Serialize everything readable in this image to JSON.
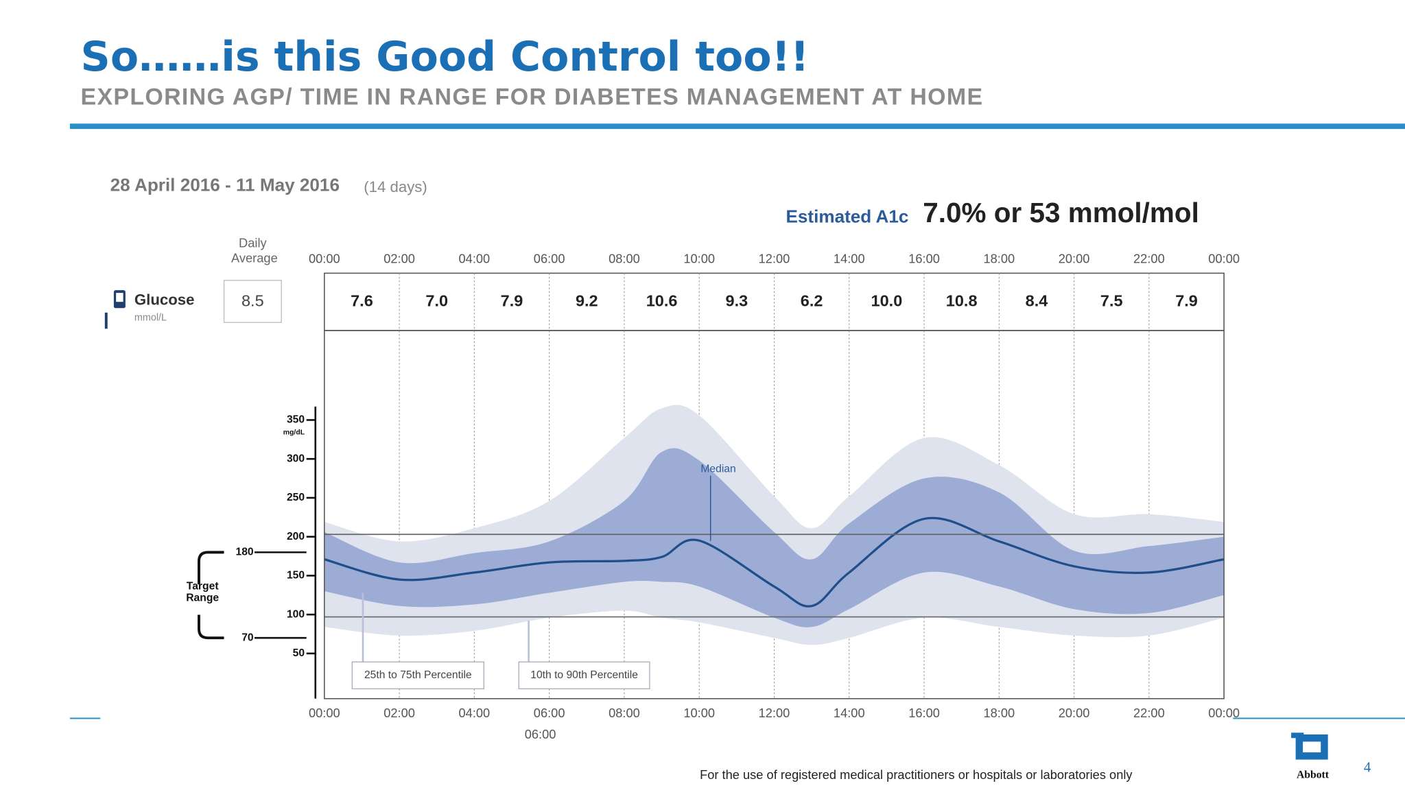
{
  "header": {
    "title": "So……is this Good Control too!!",
    "subtitle": "EXPLORING AGP/ TIME IN RANGE FOR DIABETES MANAGEMENT AT HOME"
  },
  "report": {
    "date_range": "28 April 2016 - 11 May 2016",
    "days": "(14 days)",
    "a1c_label": "Estimated A1c",
    "a1c_value": "7.0% or 53 mmol/mol"
  },
  "glucose": {
    "label": "Glucose",
    "unit": "mmol/L",
    "daily_average_label": "Daily Average",
    "daily_average": "8.5",
    "values": [
      "7.6",
      "7.0",
      "7.9",
      "9.2",
      "10.6",
      "9.3",
      "6.2",
      "10.0",
      "10.8",
      "8.4",
      "7.5",
      "7.9"
    ]
  },
  "chart_data": {
    "type": "band",
    "y_label": "mg/dL",
    "x": [
      0,
      2,
      4,
      6,
      8,
      9,
      10,
      12,
      13,
      14,
      16,
      18,
      20,
      22,
      24
    ],
    "xlim": [
      0,
      24
    ],
    "xticks": [
      {
        "value": 0,
        "label": "00:00"
      },
      {
        "value": 2,
        "label": "02:00"
      },
      {
        "value": 4,
        "label": "04:00"
      },
      {
        "value": 6,
        "label": "06:00"
      },
      {
        "value": 8,
        "label": "08:00"
      },
      {
        "value": 10,
        "label": "10:00"
      },
      {
        "value": 12,
        "label": "12:00"
      },
      {
        "value": 14,
        "label": "14:00"
      },
      {
        "value": 16,
        "label": "16:00"
      },
      {
        "value": 18,
        "label": "18:00"
      },
      {
        "value": 20,
        "label": "20:00"
      },
      {
        "value": 22,
        "label": "22:00"
      },
      {
        "value": 24,
        "label": "00:00"
      }
    ],
    "ylim": [
      0,
      465
    ],
    "yticks": [
      50,
      100,
      150,
      200,
      250,
      300,
      350
    ],
    "reference_lines": [
      97,
      203
    ],
    "target_range": {
      "label": "Target Range",
      "low": 70,
      "high": 180
    },
    "annotations": [
      "06:00"
    ],
    "series": [
      {
        "name": "10th to 90th Percentile",
        "color": "#dfe3ee",
        "high": [
          219,
          194,
          211,
          246,
          327,
          365,
          356,
          252,
          211,
          252,
          327,
          292,
          229,
          229,
          219
        ],
        "low": [
          84,
          73,
          79,
          96,
          105,
          96,
          90,
          70,
          61,
          70,
          96,
          84,
          73,
          73,
          96
        ]
      },
      {
        "name": "25th to 75th Percentile",
        "color": "#9dacd5",
        "high": [
          206,
          167,
          179,
          194,
          246,
          309,
          298,
          206,
          171,
          217,
          275,
          257,
          182,
          188,
          200
        ],
        "low": [
          130,
          111,
          113,
          128,
          142,
          142,
          136,
          96,
          84,
          107,
          154,
          136,
          107,
          102,
          125
        ]
      },
      {
        "name": "Median",
        "color": "#1f4f8b",
        "values": [
          171,
          145,
          154,
          167,
          169,
          174,
          195,
          136,
          111,
          154,
          223,
          194,
          162,
          154,
          171
        ]
      }
    ]
  },
  "footer": {
    "note": "For the use of registered medical practitioners or hospitals or laboratories only",
    "brand": "Abbott",
    "page": "4"
  }
}
